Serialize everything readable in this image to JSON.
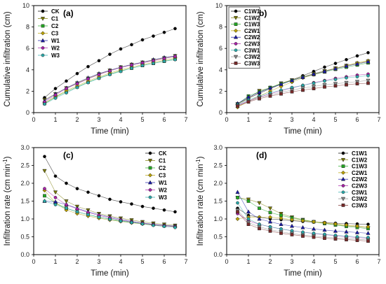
{
  "chart_data": [
    {
      "panel_label": "(a)",
      "type": "line",
      "xlabel": "Time (min)",
      "ylabel": "Cumulative infiltration (cm)",
      "ylabel_sup": "",
      "ylabel_tail": "",
      "xlim": [
        0,
        7
      ],
      "ylim": [
        0,
        10
      ],
      "xticks": [
        0,
        1,
        2,
        3,
        4,
        5,
        6,
        7
      ],
      "yticks": [
        0,
        2,
        4,
        6,
        8,
        10
      ],
      "legend_position": "top-left",
      "x": [
        0.5,
        1.0,
        1.5,
        2.0,
        2.5,
        3.0,
        3.5,
        4.0,
        4.5,
        5.0,
        5.5,
        6.0,
        6.5
      ],
      "series": [
        {
          "name": "CK",
          "color": "#000000",
          "marker": "circle",
          "values": [
            1.4,
            2.25,
            2.95,
            3.65,
            4.3,
            4.85,
            5.45,
            5.95,
            6.35,
            6.8,
            7.15,
            7.5,
            7.85
          ]
        },
        {
          "name": "C1",
          "color": "#7a7a00",
          "marker": "triangle-down",
          "values": [
            1.2,
            1.75,
            2.3,
            2.75,
            3.2,
            3.6,
            3.95,
            4.25,
            4.5,
            4.7,
            4.9,
            5.1,
            5.3
          ]
        },
        {
          "name": "C2",
          "color": "#22aa22",
          "marker": "square",
          "values": [
            0.85,
            1.45,
            1.95,
            2.4,
            2.85,
            3.25,
            3.6,
            3.9,
            4.15,
            4.4,
            4.6,
            4.8,
            5.0
          ]
        },
        {
          "name": "C3",
          "color": "#b8a000",
          "marker": "diamond",
          "values": [
            0.9,
            1.5,
            2.05,
            2.5,
            2.95,
            3.35,
            3.7,
            4.0,
            4.25,
            4.5,
            4.7,
            4.9,
            5.1
          ]
        },
        {
          "name": "W1",
          "color": "#1a1aa8",
          "marker": "triangle-up",
          "values": [
            1.1,
            1.75,
            2.3,
            2.8,
            3.25,
            3.65,
            3.95,
            4.25,
            4.5,
            4.7,
            4.95,
            5.15,
            5.3
          ]
        },
        {
          "name": "W2",
          "color": "#aa22aa",
          "marker": "circle",
          "values": [
            1.0,
            1.65,
            2.25,
            2.7,
            3.15,
            3.55,
            3.9,
            4.2,
            4.45,
            4.65,
            4.85,
            5.05,
            5.25
          ]
        },
        {
          "name": "W3",
          "color": "#2aaaaa",
          "marker": "circle",
          "values": [
            0.8,
            1.35,
            1.85,
            2.35,
            2.8,
            3.2,
            3.55,
            3.85,
            4.15,
            4.4,
            4.6,
            4.8,
            4.95
          ]
        }
      ]
    },
    {
      "panel_label": "(b)",
      "type": "line",
      "xlabel": "Time (min)",
      "ylabel": "Cumulative infiltration (cm)",
      "ylabel_sup": "",
      "ylabel_tail": "",
      "xlim": [
        0,
        7
      ],
      "ylim": [
        0,
        10
      ],
      "xticks": [
        0,
        1,
        2,
        3,
        4,
        5,
        6,
        7
      ],
      "yticks": [
        0,
        2,
        4,
        6,
        8,
        10
      ],
      "legend_position": "top-left",
      "x": [
        0.5,
        1.0,
        1.5,
        2.0,
        2.5,
        3.0,
        3.5,
        4.0,
        4.5,
        5.0,
        5.5,
        6.0,
        6.5
      ],
      "series": [
        {
          "name": "C1W1",
          "color": "#000000",
          "marker": "circle",
          "values": [
            0.85,
            1.35,
            1.8,
            2.25,
            2.65,
            3.05,
            3.45,
            3.85,
            4.25,
            4.6,
            4.95,
            5.3,
            5.6
          ]
        },
        {
          "name": "C1W2",
          "color": "#7a7a00",
          "marker": "triangle-down",
          "values": [
            0.8,
            1.3,
            2.05,
            2.3,
            2.75,
            3.05,
            3.35,
            3.65,
            3.9,
            4.15,
            4.4,
            4.6,
            4.8
          ]
        },
        {
          "name": "C1W3",
          "color": "#22aa22",
          "marker": "square",
          "values": [
            0.8,
            1.55,
            1.95,
            2.35,
            2.7,
            3.0,
            3.3,
            3.55,
            3.8,
            4.05,
            4.25,
            4.45,
            4.65
          ]
        },
        {
          "name": "C2W1",
          "color": "#b8a000",
          "marker": "diamond",
          "values": [
            0.5,
            1.05,
            1.55,
            2.0,
            2.45,
            2.85,
            3.25,
            3.55,
            3.85,
            4.15,
            4.4,
            4.65,
            4.85
          ]
        },
        {
          "name": "C2W2",
          "color": "#1a1aa8",
          "marker": "triangle-up",
          "values": [
            0.85,
            1.45,
            1.9,
            2.3,
            2.65,
            3.0,
            3.3,
            3.6,
            3.85,
            4.1,
            4.35,
            4.55,
            4.75
          ]
        },
        {
          "name": "C2W3",
          "color": "#aa22aa",
          "marker": "circle",
          "values": [
            0.7,
            1.1,
            1.45,
            1.75,
            2.05,
            2.3,
            2.55,
            2.8,
            3.0,
            3.2,
            3.35,
            3.5,
            3.6
          ]
        },
        {
          "name": "C3W1",
          "color": "#2aaaaa",
          "marker": "circle",
          "values": [
            0.75,
            1.2,
            1.55,
            1.85,
            2.1,
            2.35,
            2.55,
            2.75,
            2.95,
            3.1,
            3.25,
            3.35,
            3.45
          ]
        },
        {
          "name": "C3W2",
          "color": "#888888",
          "marker": "triangle-down",
          "values": [
            0.65,
            1.05,
            1.4,
            1.65,
            1.9,
            2.1,
            2.3,
            2.45,
            2.6,
            2.7,
            2.8,
            2.9,
            3.0
          ]
        },
        {
          "name": "C3W3",
          "color": "#7a2a2a",
          "marker": "square",
          "values": [
            0.6,
            1.0,
            1.3,
            1.55,
            1.75,
            1.95,
            2.1,
            2.25,
            2.4,
            2.5,
            2.6,
            2.7,
            2.75
          ]
        }
      ]
    },
    {
      "panel_label": "(c)",
      "type": "line",
      "xlabel": "Time (min)",
      "ylabel": "Infiltration rate (cm min",
      "ylabel_sup": "-1",
      "ylabel_tail": ")",
      "xlim": [
        0,
        7
      ],
      "ylim": [
        0,
        3.0
      ],
      "xticks": [
        0,
        1,
        2,
        3,
        4,
        5,
        6,
        7
      ],
      "yticks": [
        0.0,
        0.5,
        1.0,
        1.5,
        2.0,
        2.5,
        3.0
      ],
      "legend_position": "top-right",
      "x": [
        0.5,
        1.0,
        1.5,
        2.0,
        2.5,
        3.0,
        3.5,
        4.0,
        4.5,
        5.0,
        5.5,
        6.0,
        6.5
      ],
      "series": [
        {
          "name": "CK",
          "color": "#000000",
          "marker": "circle",
          "values": [
            2.75,
            2.2,
            2.0,
            1.85,
            1.75,
            1.65,
            1.55,
            1.48,
            1.42,
            1.35,
            1.3,
            1.25,
            1.2
          ]
        },
        {
          "name": "C1",
          "color": "#7a7a00",
          "marker": "triangle-down",
          "values": [
            2.35,
            1.75,
            1.5,
            1.35,
            1.25,
            1.15,
            1.08,
            1.02,
            0.97,
            0.92,
            0.88,
            0.85,
            0.82
          ]
        },
        {
          "name": "C2",
          "color": "#22aa22",
          "marker": "square",
          "values": [
            1.65,
            1.45,
            1.3,
            1.2,
            1.12,
            1.05,
            1.0,
            0.95,
            0.91,
            0.87,
            0.84,
            0.81,
            0.79
          ]
        },
        {
          "name": "C3",
          "color": "#b8a000",
          "marker": "diamond",
          "values": [
            1.8,
            1.45,
            1.25,
            1.15,
            1.08,
            1.02,
            0.97,
            0.93,
            0.89,
            0.86,
            0.83,
            0.81,
            0.79
          ]
        },
        {
          "name": "W1",
          "color": "#1a1aa8",
          "marker": "triangle-up",
          "values": [
            1.5,
            1.48,
            1.4,
            1.3,
            1.2,
            1.12,
            1.05,
            0.99,
            0.93,
            0.89,
            0.85,
            0.82,
            0.8
          ]
        },
        {
          "name": "W2",
          "color": "#aa22aa",
          "marker": "circle",
          "values": [
            1.85,
            1.6,
            1.4,
            1.28,
            1.18,
            1.1,
            1.03,
            0.97,
            0.92,
            0.88,
            0.84,
            0.81,
            0.78
          ]
        },
        {
          "name": "W3",
          "color": "#2aaaaa",
          "marker": "circle",
          "values": [
            1.5,
            1.4,
            1.3,
            1.2,
            1.12,
            1.05,
            0.99,
            0.94,
            0.9,
            0.86,
            0.82,
            0.79,
            0.76
          ]
        }
      ]
    },
    {
      "panel_label": "(d)",
      "type": "line",
      "xlabel": "Time (min)",
      "ylabel": "Infiltration rate (cm min",
      "ylabel_sup": "-1",
      "ylabel_tail": ")",
      "xlim": [
        0,
        7
      ],
      "ylim": [
        0,
        3.0
      ],
      "xticks": [
        0,
        1,
        2,
        3,
        4,
        5,
        6,
        7
      ],
      "yticks": [
        0.0,
        0.5,
        1.0,
        1.5,
        2.0,
        2.5,
        3.0
      ],
      "legend_position": "top-right",
      "x": [
        0.5,
        1.0,
        1.5,
        2.0,
        2.5,
        3.0,
        3.5,
        4.0,
        4.5,
        5.0,
        5.5,
        6.0,
        6.5
      ],
      "series": [
        {
          "name": "C1W1",
          "color": "#000000",
          "marker": "circle",
          "values": [
            1.3,
            1.1,
            1.05,
            1.0,
            0.98,
            0.95,
            0.93,
            0.91,
            0.9,
            0.88,
            0.87,
            0.86,
            0.85
          ]
        },
        {
          "name": "C1W2",
          "color": "#7a7a00",
          "marker": "triangle-down",
          "values": [
            1.6,
            1.55,
            1.45,
            1.3,
            1.15,
            1.05,
            0.98,
            0.92,
            0.88,
            0.84,
            0.81,
            0.78,
            0.75
          ]
        },
        {
          "name": "C1W3",
          "color": "#22aa22",
          "marker": "square",
          "values": [
            1.6,
            1.5,
            1.3,
            1.18,
            1.1,
            1.03,
            0.97,
            0.92,
            0.87,
            0.83,
            0.79,
            0.76,
            0.73
          ]
        },
        {
          "name": "C2W1",
          "color": "#b8a000",
          "marker": "diamond",
          "values": [
            1.0,
            1.05,
            1.05,
            1.05,
            1.02,
            0.98,
            0.95,
            0.92,
            0.89,
            0.86,
            0.83,
            0.8,
            0.78
          ]
        },
        {
          "name": "C2W2",
          "color": "#1a1aa8",
          "marker": "triangle-up",
          "values": [
            1.75,
            1.2,
            1.0,
            0.92,
            0.85,
            0.8,
            0.76,
            0.72,
            0.69,
            0.66,
            0.64,
            0.62,
            0.6
          ]
        },
        {
          "name": "C2W3",
          "color": "#aa22aa",
          "marker": "circle",
          "values": [
            1.15,
            0.95,
            0.85,
            0.78,
            0.72,
            0.67,
            0.63,
            0.59,
            0.56,
            0.53,
            0.5,
            0.48,
            0.46
          ]
        },
        {
          "name": "C3W1",
          "color": "#2aaaaa",
          "marker": "circle",
          "values": [
            1.45,
            1.0,
            0.85,
            0.78,
            0.72,
            0.67,
            0.63,
            0.6,
            0.57,
            0.54,
            0.52,
            0.5,
            0.48
          ]
        },
        {
          "name": "C3W2",
          "color": "#888888",
          "marker": "triangle-down",
          "values": [
            1.25,
            0.9,
            0.78,
            0.7,
            0.64,
            0.59,
            0.55,
            0.52,
            0.49,
            0.47,
            0.45,
            0.43,
            0.41
          ]
        },
        {
          "name": "C3W3",
          "color": "#7a2a2a",
          "marker": "square",
          "values": [
            1.2,
            0.85,
            0.73,
            0.66,
            0.6,
            0.56,
            0.52,
            0.49,
            0.46,
            0.44,
            0.42,
            0.4,
            0.38
          ]
        }
      ]
    }
  ]
}
